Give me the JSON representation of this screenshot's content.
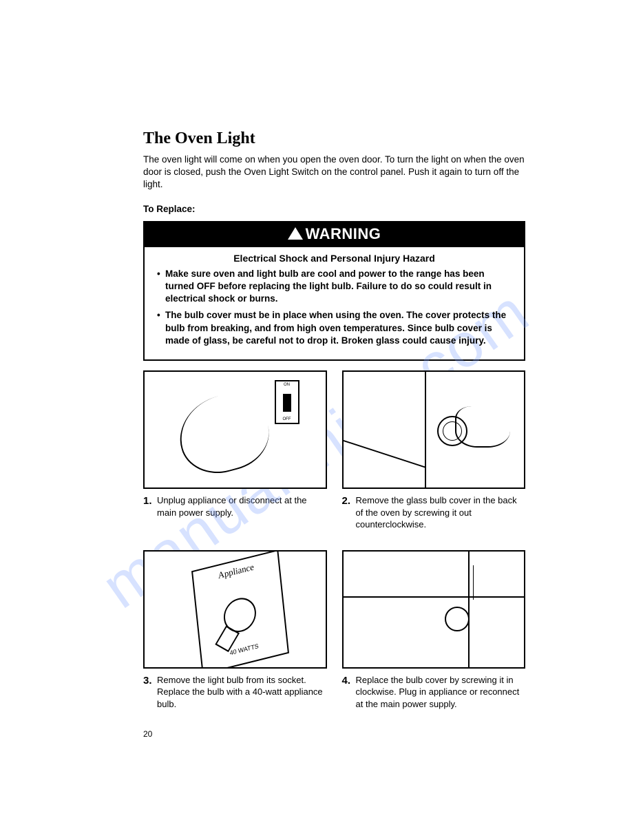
{
  "title": "The Oven Light",
  "intro": "The oven light will come on when you open the oven door. To turn the light on when the oven door is closed, push the Oven Light Switch on the control panel. Push it again to turn off the light.",
  "to_replace": "To Replace:",
  "warning": {
    "label": "WARNING",
    "hazard": "Electrical Shock and Personal Injury Hazard",
    "bullets": [
      "Make sure oven and light bulb are cool and power to the range has been turned OFF before replacing the light bulb. Failure to do so could result in electrical shock or burns.",
      "The bulb cover must be in place when using the oven. The cover protects the bulb from breaking, and from high oven temperatures. Since bulb cover is made of glass, be careful not to drop it. Broken glass could cause injury."
    ]
  },
  "steps": [
    {
      "num": "1.",
      "text": "Unplug appliance or disconnect at the main power supply."
    },
    {
      "num": "2.",
      "text": "Remove the glass bulb cover in the back of the oven by screwing it out counterclockwise."
    },
    {
      "num": "3.",
      "text": "Remove the light bulb from its socket. Replace the bulb with a 40-watt appliance bulb."
    },
    {
      "num": "4.",
      "text": "Replace the bulb cover by screwing it in clockwise. Plug in appliance or reconnect at the main power supply."
    }
  ],
  "illustration": {
    "switch_on": "ON",
    "switch_off": "OFF",
    "pkg_label": "Appliance",
    "pkg_watts": "40 WATTS"
  },
  "page_number": "20",
  "watermark": "manualshive.com",
  "colors": {
    "text": "#000000",
    "background": "#ffffff",
    "watermark": "rgba(110,150,255,0.28)"
  }
}
